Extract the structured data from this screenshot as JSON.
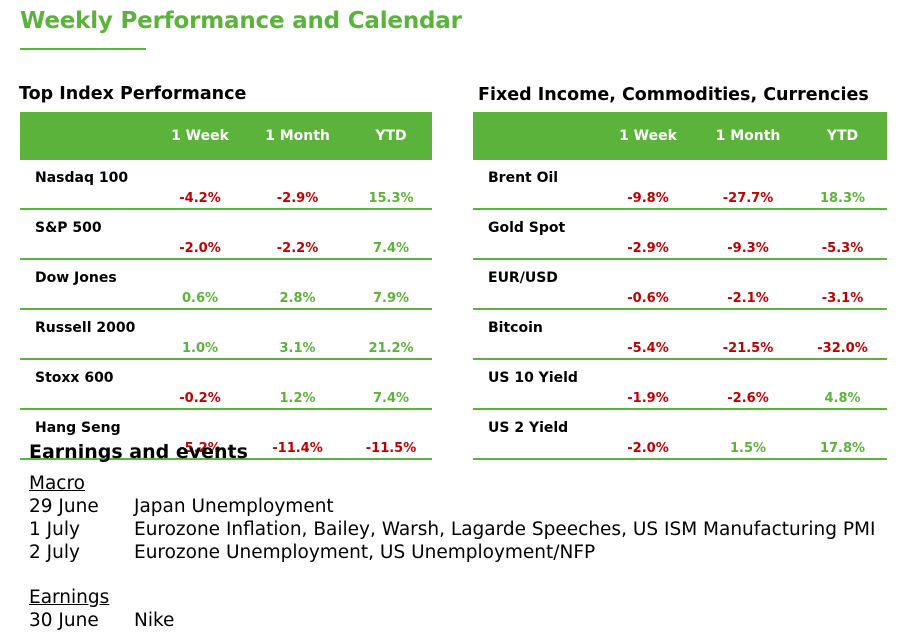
{
  "title": "Weekly Performance and Calendar",
  "colors": {
    "accent": "#5cb33c",
    "negative": "#c00000",
    "positive": "#5cb33c"
  },
  "index_table": {
    "title": "Top Index Performance",
    "headers": [
      "",
      "1 Week",
      "1 Month",
      "YTD"
    ],
    "rows": [
      {
        "name": "Nasdaq 100",
        "week": "-4.2%",
        "month": "-2.9%",
        "ytd": "15.3%"
      },
      {
        "name": "S&P 500",
        "week": "-2.0%",
        "month": "-2.2%",
        "ytd": "7.4%"
      },
      {
        "name": "Dow Jones",
        "week": "0.6%",
        "month": "2.8%",
        "ytd": "7.9%"
      },
      {
        "name": "Russell 2000",
        "week": "1.0%",
        "month": "3.1%",
        "ytd": "21.2%"
      },
      {
        "name": "Stoxx 600",
        "week": "-0.2%",
        "month": "1.2%",
        "ytd": "7.4%"
      },
      {
        "name": "Hang Seng",
        "week": "-5.2%",
        "month": "-11.4%",
        "ytd": "-11.5%"
      }
    ]
  },
  "fixed_table": {
    "title": "Fixed Income, Commodities, Currencies",
    "headers": [
      "",
      "1 Week",
      "1 Month",
      "YTD"
    ],
    "rows": [
      {
        "name": "Brent Oil",
        "week": "-9.8%",
        "month": "-27.7%",
        "ytd": "18.3%"
      },
      {
        "name": "Gold Spot",
        "week": "-2.9%",
        "month": "-9.3%",
        "ytd": "-5.3%"
      },
      {
        "name": "EUR/USD",
        "week": "-0.6%",
        "month": "-2.1%",
        "ytd": "-3.1%"
      },
      {
        "name": "Bitcoin",
        "week": "-5.4%",
        "month": "-21.5%",
        "ytd": "-32.0%"
      },
      {
        "name": "US 10 Yield",
        "week": "-1.9%",
        "month": "-2.6%",
        "ytd": "4.8%"
      },
      {
        "name": "US 2 Yield",
        "week": "-2.0%",
        "month": "1.5%",
        "ytd": "17.8%"
      }
    ]
  },
  "earnings_events": {
    "title": "Earnings and events",
    "macro": {
      "heading": "Macro",
      "items": [
        {
          "date": "29 June",
          "event": "Japan Unemployment"
        },
        {
          "date": "1 July",
          "event": "Eurozone Inflation, Bailey, Warsh, Lagarde Speeches, US ISM Manufacturing PMI"
        },
        {
          "date": "2 July",
          "event": "Eurozone Unemployment, US Unemployment/NFP"
        }
      ]
    },
    "earnings": {
      "heading": "Earnings",
      "items": [
        {
          "date": "30 June",
          "event": "Nike"
        }
      ]
    }
  }
}
